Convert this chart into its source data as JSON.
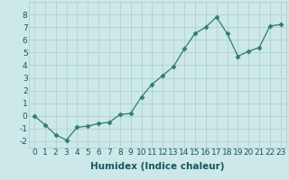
{
  "x": [
    0,
    1,
    2,
    3,
    4,
    5,
    6,
    7,
    8,
    9,
    10,
    11,
    12,
    13,
    14,
    15,
    16,
    17,
    18,
    19,
    20,
    21,
    22,
    23
  ],
  "y": [
    0.0,
    -0.7,
    -1.5,
    -1.9,
    -0.9,
    -0.8,
    -0.6,
    -0.5,
    0.1,
    0.2,
    1.5,
    2.5,
    3.2,
    3.9,
    5.3,
    6.5,
    7.0,
    7.8,
    6.5,
    4.7,
    5.1,
    5.4,
    7.1,
    7.2
  ],
  "line_color": "#2e7d6e",
  "marker": "D",
  "marker_size": 2.5,
  "bg_color": "#cce8e8",
  "grid_color": "#aacccc",
  "xlabel": "Humidex (Indice chaleur)",
  "xlim": [
    -0.5,
    23.5
  ],
  "ylim": [
    -2.5,
    9.0
  ],
  "yticks": [
    -2,
    -1,
    0,
    1,
    2,
    3,
    4,
    5,
    6,
    7,
    8
  ],
  "xticks": [
    0,
    1,
    2,
    3,
    4,
    5,
    6,
    7,
    8,
    9,
    10,
    11,
    12,
    13,
    14,
    15,
    16,
    17,
    18,
    19,
    20,
    21,
    22,
    23
  ],
  "xlabel_fontsize": 7.5,
  "tick_fontsize": 6.5,
  "tick_color": "#1a5560",
  "label_color": "#1a5560",
  "line_width": 0.9
}
